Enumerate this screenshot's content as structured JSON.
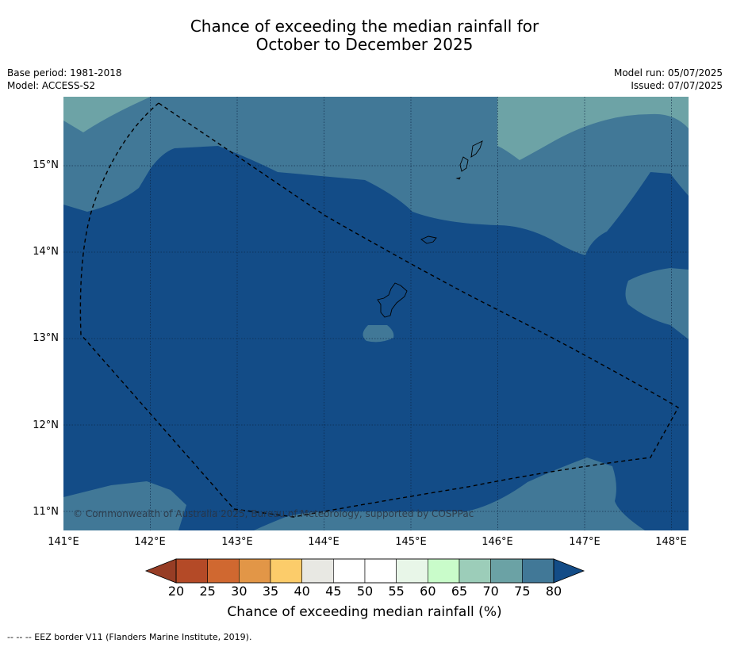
{
  "title": {
    "line1": "Chance of exceeding the median rainfall for",
    "line2": "October to December 2025"
  },
  "meta": {
    "base_period": "Base period: 1981-2018",
    "model": "Model: ACCESS-S2",
    "model_run": "Model run: 05/07/2025",
    "issued": "Issued: 07/07/2025"
  },
  "map": {
    "lat_ticks": [
      "15°N",
      "14°N",
      "13°N",
      "12°N",
      "11°N"
    ],
    "lon_ticks": [
      "141°E",
      "142°E",
      "143°E",
      "144°E",
      "145°E",
      "146°E",
      "147°E",
      "148°E"
    ],
    "copyright": "© Commonwealth of Australia 2025, Bureau of Meteorology, supported by COSPPac",
    "extent": {
      "lon": [
        141,
        148.2
      ],
      "lat": [
        10.8,
        15.8
      ]
    },
    "gridlines": true,
    "colors": {
      "band_75_80": "#417897",
      "band_above_80": "#134c87",
      "band_70_75": "#6da3a6"
    }
  },
  "colorbar": {
    "labels": [
      "20",
      "25",
      "30",
      "35",
      "40",
      "45",
      "50",
      "55",
      "60",
      "65",
      "70",
      "75",
      "80"
    ],
    "colors": [
      "#b44a27",
      "#d06830",
      "#e29647",
      "#fccc6a",
      "#e8e8e3",
      "#ffffff",
      "#ffffff",
      "#e8f6e8",
      "#c9fcca",
      "#9ccdb9",
      "#6ba2a5",
      "#417897"
    ],
    "under_color": "#973d25",
    "over_color": "#134c87",
    "title": "Chance of exceeding median rainfall (%)"
  },
  "footnote": "--  --  -- EEZ border V11 (Flanders Marine Institute, 2019)."
}
